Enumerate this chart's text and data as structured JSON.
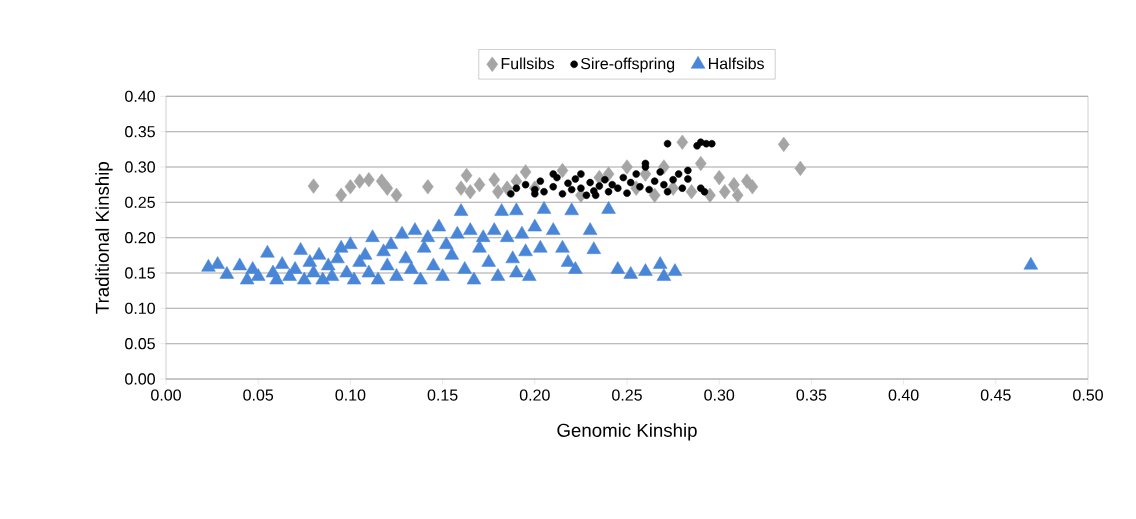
{
  "chart_data": {
    "type": "scatter",
    "xlabel": "Genomic Kinship",
    "ylabel": "Traditional Kinship",
    "xlim": [
      0,
      0.5
    ],
    "ylim": [
      0,
      0.4
    ],
    "xticks": [
      {
        "value": 0,
        "label": "0.00"
      },
      {
        "value": 0.05,
        "label": "0.05"
      },
      {
        "value": 0.1,
        "label": "0.10"
      },
      {
        "value": 0.15,
        "label": "0.15"
      },
      {
        "value": 0.2,
        "label": "0.20"
      },
      {
        "value": 0.25,
        "label": "0.25"
      },
      {
        "value": 0.3,
        "label": "0.30"
      },
      {
        "value": 0.35,
        "label": "0.35"
      },
      {
        "value": 0.4,
        "label": "0.40"
      },
      {
        "value": 0.45,
        "label": "0.45"
      },
      {
        "value": 0.5,
        "label": "0.50"
      }
    ],
    "yticks": [
      {
        "value": 0,
        "label": "0.00"
      },
      {
        "value": 0.05,
        "label": "0.05"
      },
      {
        "value": 0.1,
        "label": "0.10"
      },
      {
        "value": 0.15,
        "label": "0.15"
      },
      {
        "value": 0.2,
        "label": "0.20"
      },
      {
        "value": 0.25,
        "label": "0.25"
      },
      {
        "value": 0.3,
        "label": "0.30"
      },
      {
        "value": 0.35,
        "label": "0.35"
      },
      {
        "value": 0.4,
        "label": "0.40"
      }
    ],
    "grid": "y",
    "legend": "top",
    "series": [
      {
        "name": "Fullsibs",
        "color": "#a5a5a5",
        "marker": "diamond",
        "x": [
          0.08,
          0.095,
          0.1,
          0.105,
          0.11,
          0.117,
          0.12,
          0.125,
          0.142,
          0.16,
          0.163,
          0.165,
          0.17,
          0.178,
          0.18,
          0.185,
          0.19,
          0.195,
          0.2,
          0.21,
          0.215,
          0.22,
          0.225,
          0.235,
          0.24,
          0.25,
          0.255,
          0.26,
          0.265,
          0.27,
          0.275,
          0.28,
          0.283,
          0.285,
          0.29,
          0.292,
          0.295,
          0.3,
          0.303,
          0.308,
          0.31,
          0.315,
          0.318,
          0.335,
          0.344
        ],
        "values": [
          0.273,
          0.26,
          0.272,
          0.28,
          0.282,
          0.28,
          0.27,
          0.26,
          0.272,
          0.27,
          0.288,
          0.265,
          0.275,
          0.282,
          0.265,
          0.27,
          0.28,
          0.293,
          0.27,
          null,
          0.295,
          null,
          0.26,
          0.285,
          0.29,
          0.3,
          0.27,
          0.29,
          0.26,
          0.3,
          0.27,
          0.335,
          null,
          0.265,
          0.305,
          null,
          0.26,
          0.285,
          0.265,
          0.275,
          0.26,
          0.28,
          0.272,
          0.332,
          0.298
        ]
      },
      {
        "name": "Sire-offspring",
        "color": "#000000",
        "marker": "circle",
        "x": [
          0.187,
          0.19,
          0.195,
          0.2,
          0.203,
          0.205,
          0.21,
          0.212,
          0.215,
          0.218,
          0.22,
          0.222,
          0.225,
          0.228,
          0.23,
          0.232,
          0.235,
          0.238,
          0.24,
          0.242,
          0.245,
          0.248,
          0.25,
          0.252,
          0.255,
          0.257,
          0.26,
          0.262,
          0.265,
          0.268,
          0.27,
          0.272,
          0.275,
          0.272,
          0.278,
          0.28,
          0.283,
          0.288,
          0.29,
          0.293,
          0.296,
          0.29,
          0.292,
          0.2,
          0.21,
          0.225,
          0.233,
          0.26,
          0.283
        ],
        "values": [
          0.262,
          0.27,
          0.275,
          0.268,
          0.28,
          0.265,
          0.272,
          0.285,
          0.262,
          0.277,
          0.268,
          0.283,
          0.27,
          0.26,
          0.278,
          0.266,
          0.273,
          0.282,
          0.265,
          0.275,
          0.27,
          0.285,
          0.263,
          0.278,
          0.29,
          0.272,
          0.3,
          0.268,
          0.28,
          0.293,
          0.275,
          0.265,
          0.282,
          0.333,
          0.29,
          0.27,
          0.283,
          0.33,
          0.335,
          0.333,
          0.333,
          0.27,
          0.265,
          0.262,
          0.29,
          0.29,
          0.26,
          0.305,
          0.295
        ]
      },
      {
        "name": "Halfsibs",
        "color": "#4a86d8",
        "marker": "triangle",
        "x": [
          0.023,
          0.028,
          0.033,
          0.04,
          0.044,
          0.047,
          0.05,
          0.055,
          0.058,
          0.06,
          0.063,
          0.067,
          0.07,
          0.073,
          0.075,
          0.078,
          0.08,
          0.083,
          0.085,
          0.088,
          0.09,
          0.093,
          0.095,
          0.098,
          0.1,
          0.102,
          0.105,
          0.108,
          0.11,
          0.112,
          0.115,
          0.118,
          0.12,
          0.122,
          0.125,
          0.128,
          0.13,
          0.133,
          0.135,
          0.138,
          0.14,
          0.142,
          0.145,
          0.148,
          0.15,
          0.152,
          0.155,
          0.158,
          0.16,
          0.162,
          0.165,
          0.167,
          0.17,
          0.172,
          0.175,
          0.178,
          0.18,
          0.182,
          0.185,
          0.188,
          0.19,
          0.19,
          0.193,
          0.195,
          0.197,
          0.2,
          0.203,
          0.205,
          0.21,
          0.215,
          0.218,
          0.22,
          0.222,
          0.23,
          0.232,
          0.24,
          0.245,
          0.252,
          0.26,
          0.268,
          0.27,
          0.276,
          0.469
        ],
        "values": [
          0.158,
          0.162,
          0.148,
          0.16,
          0.14,
          0.155,
          0.145,
          0.178,
          0.15,
          0.14,
          0.162,
          0.145,
          0.155,
          0.182,
          0.14,
          0.165,
          0.15,
          0.175,
          0.14,
          0.16,
          0.145,
          0.17,
          0.185,
          0.15,
          0.19,
          0.14,
          0.165,
          0.175,
          0.15,
          0.2,
          0.14,
          0.18,
          0.16,
          0.19,
          0.145,
          0.205,
          0.17,
          0.155,
          0.21,
          0.14,
          0.185,
          0.2,
          0.16,
          0.215,
          0.145,
          0.19,
          0.175,
          0.205,
          0.237,
          0.155,
          0.21,
          0.14,
          0.185,
          0.2,
          0.165,
          0.21,
          0.145,
          0.237,
          0.2,
          0.17,
          0.238,
          0.15,
          0.205,
          0.18,
          0.145,
          0.215,
          0.185,
          0.24,
          0.21,
          0.185,
          0.165,
          0.238,
          0.155,
          0.21,
          0.183,
          0.24,
          0.155,
          0.148,
          0.152,
          0.162,
          0.145,
          0.152,
          0.161
        ]
      }
    ]
  }
}
